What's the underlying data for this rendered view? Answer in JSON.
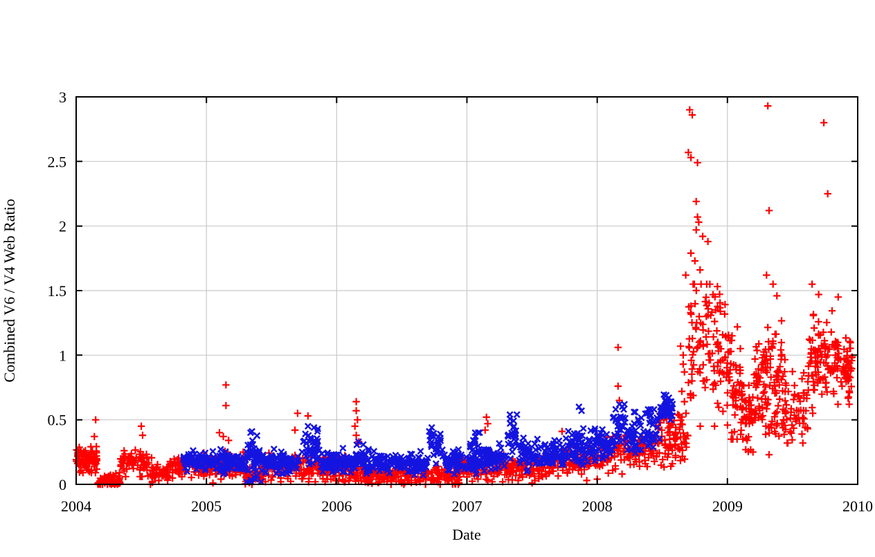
{
  "chart_data": {
    "type": "scatter",
    "title": "",
    "xlabel": "Date",
    "ylabel": "Combined V6 / V4 Web Ratio",
    "xlim": [
      2004,
      2010
    ],
    "ylim": [
      0,
      3
    ],
    "xticks": [
      2004,
      2005,
      2006,
      2007,
      2008,
      2009,
      2010
    ],
    "xtick_labels": [
      "2004",
      "2005",
      "2006",
      "2007",
      "2008",
      "2009",
      "2010"
    ],
    "yticks": [
      0,
      0.5,
      1,
      1.5,
      2,
      2.5,
      3
    ],
    "ytick_labels": [
      "0",
      "0.5",
      "1",
      "1.5",
      "2",
      "2.5",
      "3"
    ],
    "grid": true,
    "legend": null,
    "colors": {
      "axis": "#000000",
      "grid": "#c9c9c9",
      "background": "#ffffff",
      "series_red": "#ff0000",
      "series_blue": "#1414e0"
    },
    "series": [
      {
        "name": "red-plus",
        "marker": "plus",
        "color": "#ff0000",
        "points": [
          [
            2004.15,
            0.5
          ],
          [
            2004.14,
            0.37
          ],
          [
            2004.5,
            0.45
          ],
          [
            2004.51,
            0.38
          ],
          [
            2005.15,
            0.77
          ],
          [
            2005.15,
            0.61
          ],
          [
            2005.1,
            0.4
          ],
          [
            2005.13,
            0.37
          ],
          [
            2005.17,
            0.34
          ],
          [
            2005.7,
            0.55
          ],
          [
            2005.68,
            0.42
          ],
          [
            2005.78,
            0.53
          ],
          [
            2006.15,
            0.64
          ],
          [
            2006.15,
            0.57
          ],
          [
            2006.16,
            0.5
          ],
          [
            2006.14,
            0.45
          ],
          [
            2006.15,
            0.38
          ],
          [
            2006.17,
            0.33
          ],
          [
            2007.15,
            0.52
          ],
          [
            2007.16,
            0.47
          ],
          [
            2007.14,
            0.42
          ],
          [
            2007.73,
            0.41
          ],
          [
            2008.16,
            1.06
          ],
          [
            2008.16,
            0.76
          ],
          [
            2008.17,
            0.65
          ],
          [
            2008.64,
            1.07
          ],
          [
            2008.66,
            1.0
          ],
          [
            2008.66,
            0.93
          ],
          [
            2008.67,
            0.87
          ],
          [
            2008.65,
            0.72
          ],
          [
            2008.67,
            0.64
          ],
          [
            2008.71,
            2.9
          ],
          [
            2008.73,
            2.86
          ],
          [
            2008.7,
            2.57
          ],
          [
            2008.72,
            2.53
          ],
          [
            2008.77,
            2.49
          ],
          [
            2008.76,
            2.19
          ],
          [
            2008.77,
            2.07
          ],
          [
            2008.78,
            2.03
          ],
          [
            2008.76,
            1.97
          ],
          [
            2008.81,
            1.92
          ],
          [
            2008.72,
            1.79
          ],
          [
            2008.75,
            1.73
          ],
          [
            2008.79,
            1.66
          ],
          [
            2008.68,
            1.62
          ],
          [
            2008.85,
            1.88
          ],
          [
            2009.31,
            2.93
          ],
          [
            2009.32,
            2.12
          ],
          [
            2009.3,
            1.62
          ],
          [
            2009.35,
            1.55
          ],
          [
            2009.38,
            1.46
          ],
          [
            2009.32,
            0.23
          ],
          [
            2009.65,
            1.55
          ],
          [
            2009.7,
            1.47
          ],
          [
            2009.74,
            2.8
          ],
          [
            2009.77,
            2.25
          ],
          [
            2009.85,
            1.45
          ],
          [
            2004.22,
            0.01
          ],
          [
            2004.27,
            0.0
          ],
          [
            2004.31,
            0.01
          ],
          [
            2004.57,
            0.0
          ],
          [
            2005.05,
            0.01
          ],
          [
            2005.35,
            0.0
          ],
          [
            2006.5,
            0.01
          ],
          [
            2006.64,
            0.02
          ],
          [
            2007.5,
            0.01
          ],
          [
            2007.92,
            0.03
          ],
          [
            2008.0,
            0.04
          ]
        ],
        "clusters": [
          [
            2004.0,
            2004.16,
            90,
            0.19,
            0.19,
            0.055,
            0.09,
            0.32
          ],
          [
            2004.16,
            2004.34,
            55,
            0.03,
            0.03,
            0.025,
            0.0,
            0.09
          ],
          [
            2004.34,
            2004.58,
            70,
            0.17,
            0.16,
            0.045,
            0.06,
            0.3
          ],
          [
            2004.58,
            2004.72,
            45,
            0.08,
            0.09,
            0.035,
            0.01,
            0.18
          ],
          [
            2004.72,
            2005.08,
            110,
            0.14,
            0.13,
            0.04,
            0.04,
            0.26
          ],
          [
            2005.08,
            2005.3,
            70,
            0.15,
            0.14,
            0.05,
            0.04,
            0.3
          ],
          [
            2005.28,
            2005.44,
            45,
            0.06,
            0.07,
            0.03,
            0.0,
            0.14
          ],
          [
            2005.44,
            2006.1,
            190,
            0.13,
            0.12,
            0.05,
            0.02,
            0.28
          ],
          [
            2006.1,
            2006.95,
            240,
            0.08,
            0.07,
            0.04,
            0.0,
            0.19
          ],
          [
            2006.95,
            2007.55,
            170,
            0.12,
            0.13,
            0.045,
            0.02,
            0.27
          ],
          [
            2007.55,
            2008.0,
            140,
            0.14,
            0.21,
            0.05,
            0.04,
            0.35
          ],
          [
            2008.0,
            2008.45,
            130,
            0.22,
            0.28,
            0.07,
            0.08,
            0.48
          ],
          [
            2008.45,
            2008.7,
            85,
            0.33,
            0.36,
            0.09,
            0.12,
            0.55
          ],
          [
            2008.7,
            2009.0,
            120,
            1.1,
            0.95,
            0.28,
            0.45,
            1.55
          ],
          [
            2009.0,
            2009.12,
            60,
            0.8,
            0.6,
            0.22,
            0.35,
            1.45
          ],
          [
            2009.1,
            2009.22,
            50,
            0.52,
            0.55,
            0.13,
            0.25,
            0.85
          ],
          [
            2009.2,
            2009.42,
            95,
            0.85,
            0.9,
            0.2,
            0.45,
            1.35
          ],
          [
            2009.28,
            2009.45,
            18,
            0.44,
            0.44,
            0.05,
            0.35,
            0.55
          ],
          [
            2009.42,
            2009.62,
            65,
            0.62,
            0.58,
            0.14,
            0.32,
            1.0
          ],
          [
            2009.62,
            2009.82,
            90,
            0.95,
            0.98,
            0.18,
            0.55,
            1.42
          ],
          [
            2009.82,
            2009.96,
            70,
            0.95,
            0.92,
            0.15,
            0.62,
            1.25
          ]
        ]
      },
      {
        "name": "blue-cross",
        "marker": "cross",
        "color": "#1414e0",
        "points": [
          [
            2005.35,
            0.41
          ],
          [
            2005.78,
            0.45
          ],
          [
            2006.73,
            0.44
          ],
          [
            2007.33,
            0.54
          ],
          [
            2007.86,
            0.6
          ],
          [
            2007.88,
            0.57
          ],
          [
            2008.17,
            0.62
          ],
          [
            2008.53,
            0.69
          ],
          [
            2008.55,
            0.67
          ],
          [
            2008.56,
            0.64
          ]
        ],
        "clusters": [
          [
            2004.82,
            2005.0,
            60,
            0.19,
            0.19,
            0.035,
            0.1,
            0.28
          ],
          [
            2005.0,
            2005.3,
            95,
            0.18,
            0.18,
            0.04,
            0.08,
            0.3
          ],
          [
            2005.3,
            2005.42,
            45,
            0.2,
            0.2,
            0.1,
            0.02,
            0.4
          ],
          [
            2005.42,
            2005.72,
            90,
            0.17,
            0.17,
            0.04,
            0.07,
            0.28
          ],
          [
            2005.72,
            2005.86,
            40,
            0.3,
            0.28,
            0.07,
            0.14,
            0.44
          ],
          [
            2005.86,
            2006.15,
            90,
            0.17,
            0.16,
            0.04,
            0.07,
            0.28
          ],
          [
            2006.15,
            2006.3,
            40,
            0.2,
            0.18,
            0.06,
            0.08,
            0.33
          ],
          [
            2006.3,
            2006.7,
            115,
            0.16,
            0.16,
            0.035,
            0.07,
            0.26
          ],
          [
            2006.7,
            2006.82,
            28,
            0.28,
            0.26,
            0.07,
            0.16,
            0.44
          ],
          [
            2006.82,
            2007.1,
            85,
            0.17,
            0.18,
            0.04,
            0.08,
            0.3
          ],
          [
            2007.02,
            2007.1,
            15,
            0.3,
            0.3,
            0.05,
            0.22,
            0.4
          ],
          [
            2007.1,
            2007.3,
            60,
            0.2,
            0.21,
            0.045,
            0.1,
            0.32
          ],
          [
            2007.3,
            2007.4,
            25,
            0.35,
            0.35,
            0.09,
            0.2,
            0.54
          ],
          [
            2007.4,
            2007.75,
            100,
            0.22,
            0.24,
            0.05,
            0.1,
            0.36
          ],
          [
            2007.75,
            2007.95,
            65,
            0.28,
            0.3,
            0.07,
            0.15,
            0.48
          ],
          [
            2007.95,
            2008.12,
            60,
            0.3,
            0.33,
            0.06,
            0.18,
            0.48
          ],
          [
            2008.12,
            2008.22,
            30,
            0.45,
            0.45,
            0.08,
            0.3,
            0.62
          ],
          [
            2008.22,
            2008.35,
            40,
            0.38,
            0.39,
            0.07,
            0.24,
            0.56
          ],
          [
            2008.35,
            2008.48,
            35,
            0.42,
            0.44,
            0.08,
            0.26,
            0.58
          ],
          [
            2008.48,
            2008.58,
            35,
            0.57,
            0.58,
            0.06,
            0.44,
            0.7
          ]
        ]
      }
    ]
  }
}
